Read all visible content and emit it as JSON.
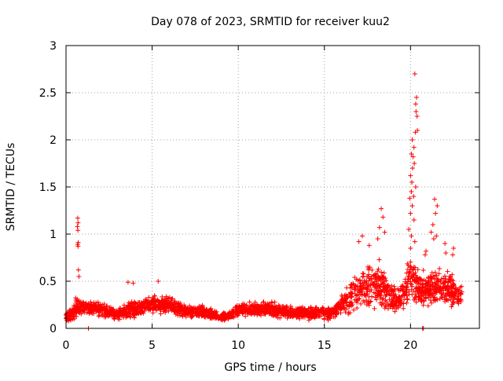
{
  "chart_data": {
    "type": "scatter",
    "title": "Day 078 of 2023, SRMTID for receiver kuu2",
    "xlabel": "GPS time / hours",
    "ylabel": "SRMTID / TECUs",
    "xlim": [
      0,
      24
    ],
    "ylim": [
      0,
      3
    ],
    "x_ticks": [
      0,
      5,
      10,
      15,
      20
    ],
    "x_tick_labels": [
      "0",
      "5",
      "10",
      "15",
      "20"
    ],
    "y_ticks": [
      0,
      0.5,
      1,
      1.5,
      2,
      2.5,
      3
    ],
    "y_tick_labels": [
      "0",
      "0.5",
      "1",
      "1.5",
      "2",
      "2.5",
      "3"
    ],
    "grid": true,
    "marker": "plus",
    "color": "#ff0000",
    "series": [
      {
        "name": "kuu2",
        "profile_hours": [
          0,
          0.3,
          0.6,
          1.0,
          2.0,
          3.0,
          3.5,
          4.0,
          5.0,
          6.0,
          7.0,
          8.0,
          9.0,
          9.5,
          10.0,
          11.0,
          12.0,
          13.0,
          14.0,
          15.0,
          15.5,
          16.0,
          16.5,
          17.0,
          17.5,
          18.0,
          18.5,
          19.0,
          19.5,
          20.0,
          20.5,
          21.0,
          21.5,
          22.0,
          22.5,
          23.0
        ],
        "profile_median": [
          0.12,
          0.15,
          0.22,
          0.22,
          0.2,
          0.15,
          0.18,
          0.2,
          0.26,
          0.24,
          0.18,
          0.17,
          0.12,
          0.13,
          0.2,
          0.2,
          0.2,
          0.17,
          0.16,
          0.16,
          0.17,
          0.25,
          0.32,
          0.4,
          0.45,
          0.5,
          0.42,
          0.3,
          0.35,
          0.55,
          0.42,
          0.42,
          0.45,
          0.42,
          0.38,
          0.35
        ],
        "profile_spread": [
          0.05,
          0.1,
          0.12,
          0.1,
          0.08,
          0.06,
          0.1,
          0.1,
          0.1,
          0.1,
          0.07,
          0.07,
          0.05,
          0.05,
          0.07,
          0.08,
          0.08,
          0.07,
          0.07,
          0.07,
          0.08,
          0.12,
          0.18,
          0.2,
          0.25,
          0.3,
          0.25,
          0.15,
          0.15,
          0.25,
          0.2,
          0.2,
          0.25,
          0.22,
          0.18,
          0.12
        ],
        "outliers": [
          {
            "x": 0.68,
            "y": 1.17
          },
          {
            "x": 0.7,
            "y": 1.12
          },
          {
            "x": 0.66,
            "y": 1.08
          },
          {
            "x": 0.69,
            "y": 1.04
          },
          {
            "x": 0.71,
            "y": 0.91
          },
          {
            "x": 0.67,
            "y": 0.89
          },
          {
            "x": 0.7,
            "y": 0.87
          },
          {
            "x": 0.72,
            "y": 0.62
          },
          {
            "x": 0.75,
            "y": 0.55
          },
          {
            "x": 5.35,
            "y": 0.5
          },
          {
            "x": 3.9,
            "y": 0.48
          },
          {
            "x": 3.6,
            "y": 0.49
          },
          {
            "x": 18.3,
            "y": 1.27
          },
          {
            "x": 18.4,
            "y": 1.18
          },
          {
            "x": 18.2,
            "y": 1.07
          },
          {
            "x": 18.5,
            "y": 1.02
          },
          {
            "x": 17.2,
            "y": 0.98
          },
          {
            "x": 17.0,
            "y": 0.92
          },
          {
            "x": 17.6,
            "y": 0.88
          },
          {
            "x": 18.1,
            "y": 0.95
          },
          {
            "x": 20.25,
            "y": 2.7
          },
          {
            "x": 20.35,
            "y": 2.45
          },
          {
            "x": 20.3,
            "y": 2.38
          },
          {
            "x": 20.32,
            "y": 2.3
          },
          {
            "x": 20.38,
            "y": 2.25
          },
          {
            "x": 20.4,
            "y": 2.1
          },
          {
            "x": 20.28,
            "y": 2.08
          },
          {
            "x": 20.1,
            "y": 2.0
          },
          {
            "x": 20.2,
            "y": 1.92
          },
          {
            "x": 20.05,
            "y": 1.85
          },
          {
            "x": 20.15,
            "y": 1.82
          },
          {
            "x": 20.22,
            "y": 1.75
          },
          {
            "x": 20.12,
            "y": 1.7
          },
          {
            "x": 20.0,
            "y": 1.62
          },
          {
            "x": 20.08,
            "y": 1.55
          },
          {
            "x": 20.3,
            "y": 1.5
          },
          {
            "x": 20.05,
            "y": 1.45
          },
          {
            "x": 20.18,
            "y": 1.4
          },
          {
            "x": 19.95,
            "y": 1.38
          },
          {
            "x": 20.1,
            "y": 1.3
          },
          {
            "x": 20.0,
            "y": 1.22
          },
          {
            "x": 20.2,
            "y": 1.15
          },
          {
            "x": 19.9,
            "y": 1.05
          },
          {
            "x": 20.05,
            "y": 0.98
          },
          {
            "x": 20.25,
            "y": 0.92
          },
          {
            "x": 20.0,
            "y": 0.85
          },
          {
            "x": 21.4,
            "y": 1.37
          },
          {
            "x": 21.55,
            "y": 1.3
          },
          {
            "x": 21.45,
            "y": 1.22
          },
          {
            "x": 21.3,
            "y": 1.1
          },
          {
            "x": 21.2,
            "y": 1.02
          },
          {
            "x": 21.5,
            "y": 0.98
          },
          {
            "x": 21.35,
            "y": 0.95
          },
          {
            "x": 22.0,
            "y": 0.9
          },
          {
            "x": 22.5,
            "y": 0.85
          },
          {
            "x": 22.45,
            "y": 0.78
          },
          {
            "x": 20.9,
            "y": 0.82
          },
          {
            "x": 20.85,
            "y": 0.78
          },
          {
            "x": 22.05,
            "y": 0.8
          }
        ],
        "low_points": [
          {
            "x": 1.3,
            "y": 0.0
          },
          {
            "x": 20.7,
            "y": 0.0
          },
          {
            "x": 20.75,
            "y": 0.0
          }
        ]
      }
    ]
  }
}
